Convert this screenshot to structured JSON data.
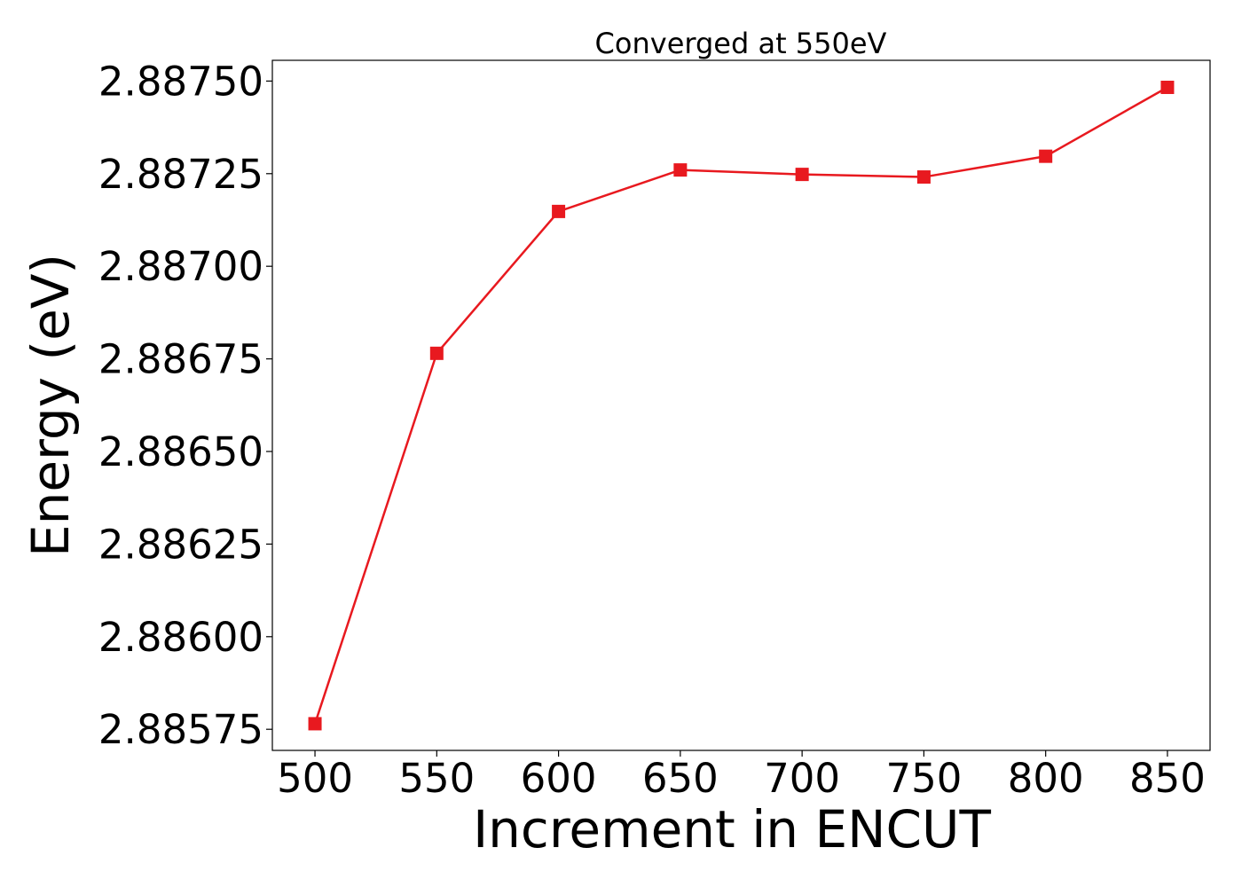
{
  "chart_data": {
    "type": "line",
    "title": "Converged at 550eV",
    "xlabel": "Increment in ENCUT",
    "ylabel": "Energy (eV)",
    "x": [
      500,
      550,
      600,
      650,
      700,
      750,
      800,
      850
    ],
    "series": [
      {
        "values": [
          2.885765,
          2.886765,
          2.887148,
          2.88726,
          2.887248,
          2.887241,
          2.887297,
          2.887483
        ],
        "color": "#e8191f",
        "marker": "square"
      }
    ],
    "xticks": [
      500,
      550,
      600,
      650,
      700,
      750,
      800,
      850
    ],
    "xtick_labels": [
      "500",
      "550",
      "600",
      "650",
      "700",
      "750",
      "800",
      "850"
    ],
    "yticks": [
      2.88575,
      2.886,
      2.88625,
      2.8865,
      2.88675,
      2.887,
      2.88725,
      2.8875
    ],
    "ytick_labels": [
      "2.88575",
      "2.88600",
      "2.88625",
      "2.88650",
      "2.88675",
      "2.88700",
      "2.88725",
      "2.88750"
    ],
    "xlim": [
      482.5,
      867.5
    ],
    "ylim": [
      2.885693,
      2.887556
    ],
    "grid": false,
    "legend": false
  }
}
